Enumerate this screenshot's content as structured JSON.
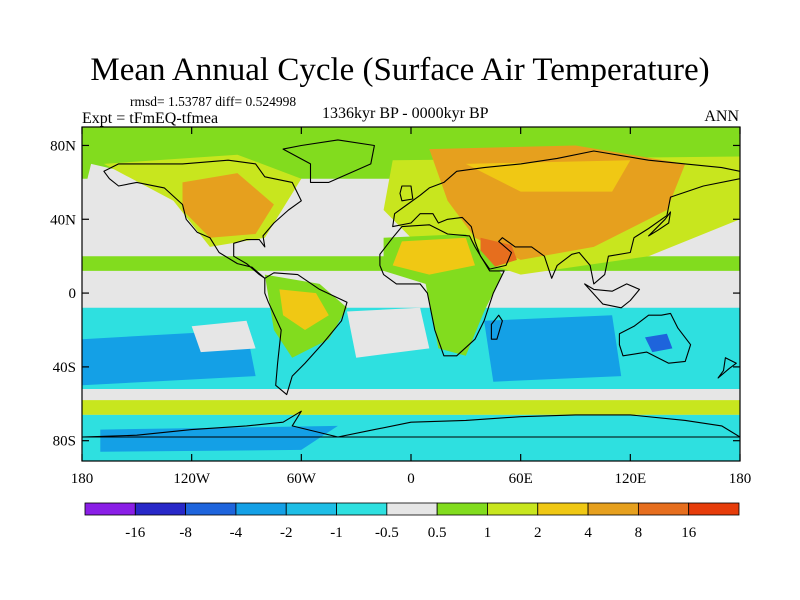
{
  "title": "Mean Annual Cycle (Surface Air Temperature)",
  "stats": "rmsd= 1.53787  diff= 0.524998",
  "experiment": "Expt = tFmEQ-tfmea",
  "period": "1336kyr BP - 0000kyr BP",
  "season": "ANN",
  "lat_ticks": [
    {
      "label": "80N",
      "lat": 80
    },
    {
      "label": "40N",
      "lat": 40
    },
    {
      "label": "0",
      "lat": 0
    },
    {
      "label": "40S",
      "lat": -40
    },
    {
      "label": "80S",
      "lat": -80
    }
  ],
  "lon_ticks": [
    {
      "label": "180",
      "lon": -180
    },
    {
      "label": "120W",
      "lon": -120
    },
    {
      "label": "60W",
      "lon": -60
    },
    {
      "label": "0",
      "lon": 0
    },
    {
      "label": "60E",
      "lon": 60
    },
    {
      "label": "120E",
      "lon": 120
    },
    {
      "label": "180",
      "lon": 180
    }
  ],
  "colorbar": {
    "colors": [
      "#8a1ee6",
      "#2828c8",
      "#1e64dc",
      "#14a0e6",
      "#1ebee6",
      "#2ee0e0",
      "#e6e6e6",
      "#82dc1e",
      "#c8e61e",
      "#f0c814",
      "#e6a01e",
      "#e66e1e",
      "#e63c0a"
    ],
    "labels": [
      "-16",
      "-8",
      "-4",
      "-2",
      "-1",
      "-0.5",
      "0.5",
      "1",
      "2",
      "4",
      "8",
      "16"
    ]
  },
  "field_colors": {
    "white": "#e6e6e6",
    "cyan": "#2ee0e0",
    "cyan_mid": "#1ebee6",
    "blue": "#14a0e6",
    "blue_deep": "#1e64dc",
    "green": "#82dc1e",
    "yellowgreen": "#c8e61e",
    "yellow": "#f0c814",
    "orange": "#e6a01e",
    "orange_deep": "#e66e1e"
  }
}
